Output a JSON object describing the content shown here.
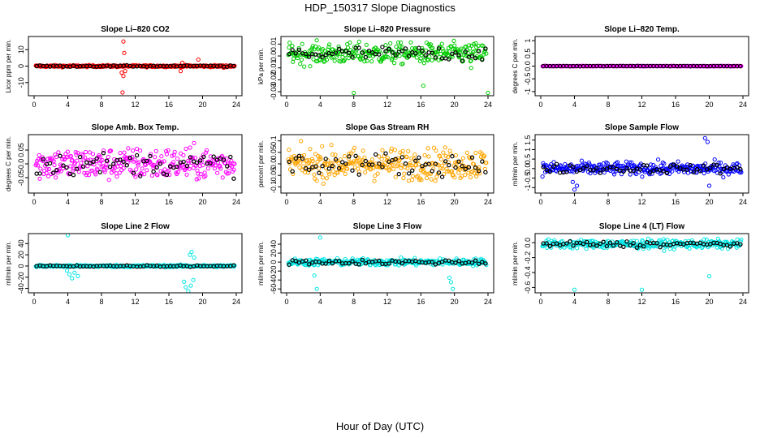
{
  "figure": {
    "title": "HDP_150317  Slope Diagnostics",
    "xlabel": "Hour of Day (UTC)"
  },
  "chart_data": [
    {
      "type": "scatter",
      "title": "Slope Li–820 CO2",
      "ylabel": "Licor ppm per min.",
      "xlim": [
        0,
        24
      ],
      "ylim": [
        -17,
        17
      ],
      "yticks": [
        -10,
        0,
        10
      ],
      "xticks": [
        0,
        4,
        8,
        12,
        16,
        20,
        24
      ],
      "base": 0,
      "spread": 0.6,
      "color": "#ff0000",
      "outliers": [
        {
          "x": 10.6,
          "y": 15
        },
        {
          "x": 10.7,
          "y": 8
        },
        {
          "x": 10.4,
          "y": -4
        },
        {
          "x": 10.6,
          "y": -6
        },
        {
          "x": 10.8,
          "y": -3
        },
        {
          "x": 10.5,
          "y": -16
        },
        {
          "x": 17.4,
          "y": -3
        },
        {
          "x": 17.6,
          "y": 2
        },
        {
          "x": 19.5,
          "y": 4
        },
        {
          "x": 22.5,
          "y": -1
        }
      ]
    },
    {
      "type": "scatter",
      "title": "Slope Li–820 Pressure",
      "ylabel": "kPa per min.",
      "xlim": [
        0,
        24
      ],
      "ylim": [
        -0.032,
        0.015
      ],
      "yticks": [
        -0.03,
        -0.02,
        -0.01,
        0.0,
        0.01
      ],
      "xticks": [
        0,
        4,
        8,
        12,
        16,
        20,
        24
      ],
      "base": 0.002,
      "spread": 0.009,
      "color": "#00cc00",
      "outliers": [
        {
          "x": 8.0,
          "y": -0.031
        },
        {
          "x": 16.3,
          "y": -0.025
        },
        {
          "x": 24.0,
          "y": -0.031
        },
        {
          "x": 22.0,
          "y": -0.01
        }
      ]
    },
    {
      "type": "scatter",
      "title": "Slope Li–820 Temp.",
      "ylabel": "degrees C per min.",
      "xlim": [
        0,
        24
      ],
      "ylim": [
        -1.1,
        1.1
      ],
      "yticks": [
        -1.0,
        -0.5,
        0.0,
        0.5,
        1.0
      ],
      "xticks": [
        0,
        4,
        8,
        12,
        16,
        20,
        24
      ],
      "base": 0,
      "spread": 0.01,
      "color": "#ff00ff",
      "outliers": []
    },
    {
      "type": "scatter",
      "title": "Slope Amb. Box Temp.",
      "ylabel": "degrees C per min.",
      "xlim": [
        0,
        24
      ],
      "ylim": [
        -0.1,
        0.1
      ],
      "yticks": [
        -0.05,
        0.0,
        0.05
      ],
      "xticks": [
        0,
        4,
        8,
        12,
        16,
        20,
        24
      ],
      "base": 0,
      "spread": 0.06,
      "color": "#ff00ff",
      "outliers": []
    },
    {
      "type": "scatter",
      "title": "Slope Gas Stream RH",
      "ylabel": "percent per min.",
      "xlim": [
        0,
        24
      ],
      "ylim": [
        -0.12,
        0.12
      ],
      "yticks": [
        -0.1,
        -0.05,
        0.0,
        0.05,
        0.1
      ],
      "xticks": [
        0,
        4,
        8,
        12,
        16,
        20,
        24
      ],
      "base": 0,
      "spread": 0.07,
      "color": "#ffa500",
      "outliers": []
    },
    {
      "type": "scatter",
      "title": "Slope Sample Flow",
      "ylabel": "ml/min per min.",
      "xlim": [
        0,
        24
      ],
      "ylim": [
        -1.2,
        1.7
      ],
      "yticks": [
        -1.0,
        -0.5,
        0.0,
        0.5,
        1.0,
        1.5
      ],
      "xticks": [
        0,
        4,
        8,
        12,
        16,
        20,
        24
      ],
      "base": 0,
      "spread": 0.35,
      "color": "#0000ff",
      "outliers": [
        {
          "x": 4.0,
          "y": -1.1
        },
        {
          "x": 4.3,
          "y": -0.9
        },
        {
          "x": 3.8,
          "y": -0.7
        },
        {
          "x": 19.5,
          "y": 1.6
        },
        {
          "x": 19.8,
          "y": 1.4
        },
        {
          "x": 20.0,
          "y": -0.9
        }
      ]
    },
    {
      "type": "scatter",
      "title": "Slope Line 2 Flow",
      "ylabel": "ml/min per min.",
      "xlim": [
        0,
        24
      ],
      "ylim": [
        -45,
        55
      ],
      "yticks": [
        -40,
        -20,
        0,
        20,
        40
      ],
      "xticks": [
        0,
        4,
        8,
        12,
        16,
        20,
        24
      ],
      "base": 0,
      "spread": 2,
      "color": "#00e5e5",
      "outliers": [
        {
          "x": 4.0,
          "y": 55
        },
        {
          "x": 4.2,
          "y": -15
        },
        {
          "x": 4.5,
          "y": -22
        },
        {
          "x": 4.8,
          "y": -12
        },
        {
          "x": 5.2,
          "y": -18
        },
        {
          "x": 3.9,
          "y": -8
        },
        {
          "x": 17.8,
          "y": -28
        },
        {
          "x": 18.0,
          "y": -38
        },
        {
          "x": 18.3,
          "y": -45
        },
        {
          "x": 18.6,
          "y": -35
        },
        {
          "x": 18.9,
          "y": -25
        },
        {
          "x": 18.5,
          "y": 20
        },
        {
          "x": 18.7,
          "y": 25
        },
        {
          "x": 19.0,
          "y": 15
        }
      ]
    },
    {
      "type": "scatter",
      "title": "Slope Line 3 Flow",
      "ylabel": "ml/min per min.",
      "xlim": [
        0,
        24
      ],
      "ylim": [
        -65,
        60
      ],
      "yticks": [
        -60,
        -40,
        -20,
        0,
        20,
        40
      ],
      "xticks": [
        0,
        4,
        8,
        12,
        16,
        20,
        24
      ],
      "base": 0,
      "spread": 8,
      "color": "#00e5e5",
      "outliers": [
        {
          "x": 4.0,
          "y": 55
        },
        {
          "x": 3.6,
          "y": -60
        },
        {
          "x": 3.3,
          "y": -30
        },
        {
          "x": 19.6,
          "y": -45
        },
        {
          "x": 19.8,
          "y": -60
        },
        {
          "x": 19.4,
          "y": -35
        }
      ]
    },
    {
      "type": "scatter",
      "title": "Slope Line 4 (LT) Flow",
      "ylabel": "ml/min per min.",
      "xlim": [
        0,
        24
      ],
      "ylim": [
        -0.65,
        0.1
      ],
      "yticks": [
        -0.6,
        -0.4,
        -0.2,
        0.0
      ],
      "xticks": [
        0,
        4,
        8,
        12,
        16,
        20,
        24
      ],
      "base": -0.02,
      "spread": 0.06,
      "color": "#00e5e5",
      "outliers": [
        {
          "x": 4.0,
          "y": -0.63
        },
        {
          "x": 12.0,
          "y": -0.63
        },
        {
          "x": 20.0,
          "y": -0.45
        }
      ]
    }
  ]
}
